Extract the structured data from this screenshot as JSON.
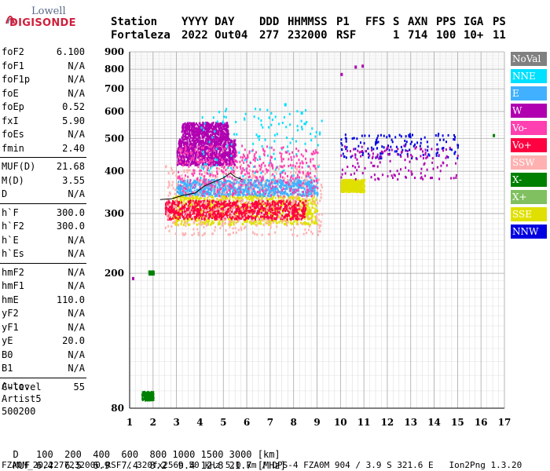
{
  "logo": {
    "line1": "Lowell",
    "line2": "DIGISONDE"
  },
  "header": {
    "labels": [
      "Station",
      "YYYY DAY",
      "DDD",
      "HHMMSS",
      "P1",
      "FFS",
      "S",
      "AXN",
      "PPS",
      "IGA",
      "PS"
    ],
    "values": [
      "Fortaleza",
      "2022 Out04",
      "277",
      "232000",
      "RSF",
      "1",
      "714",
      "100",
      "10+",
      "11"
    ]
  },
  "params_groups": [
    [
      {
        "key": "foF2",
        "value": "6.100"
      },
      {
        "key": "foF1",
        "value": "N/A"
      },
      {
        "key": "foF1p",
        "value": "N/A"
      },
      {
        "key": "foE",
        "value": "N/A"
      },
      {
        "key": "foEp",
        "value": "0.52"
      },
      {
        "key": "fxI",
        "value": "5.90"
      },
      {
        "key": "foEs",
        "value": "N/A"
      },
      {
        "key": "fmin",
        "value": "2.40"
      }
    ],
    [
      {
        "key": "MUF(D)",
        "value": "21.68"
      },
      {
        "key": "M(D)",
        "value": "3.55"
      },
      {
        "key": "D",
        "value": "N/A"
      }
    ],
    [
      {
        "key": "h`F",
        "value": "300.0"
      },
      {
        "key": "h`F2",
        "value": "300.0"
      },
      {
        "key": "h`E",
        "value": "N/A"
      },
      {
        "key": "h`Es",
        "value": "N/A"
      }
    ],
    [
      {
        "key": "hmF2",
        "value": "N/A"
      },
      {
        "key": "hmF1",
        "value": "N/A"
      },
      {
        "key": "hmE",
        "value": "110.0"
      },
      {
        "key": "yF2",
        "value": "N/A"
      },
      {
        "key": "yF1",
        "value": "N/A"
      },
      {
        "key": "yE",
        "value": "20.0"
      },
      {
        "key": "B0",
        "value": "N/A"
      },
      {
        "key": "B1",
        "value": "N/A"
      }
    ],
    [
      {
        "key": "C-level",
        "value": "55"
      }
    ]
  ],
  "auto": {
    "line1": "Auto:",
    "line2": "Artist5",
    "line3": "500200"
  },
  "legend": [
    {
      "label": "NoVal",
      "color": "#808080"
    },
    {
      "label": "NNE",
      "color": "#00e0ff"
    },
    {
      "label": "E",
      "color": "#40b0ff"
    },
    {
      "label": "W",
      "color": "#b000b0"
    },
    {
      "label": "Vo-",
      "color": "#ff40b0"
    },
    {
      "label": "Vo+",
      "color": "#ff0040"
    },
    {
      "label": "SSW",
      "color": "#ffb0b0"
    },
    {
      "label": "X-",
      "color": "#008000"
    },
    {
      "label": "X+",
      "color": "#80c060"
    },
    {
      "label": "SSE",
      "color": "#e0e000"
    },
    {
      "label": "NNW",
      "color": "#0000e0"
    }
  ],
  "footer": {
    "d_label": "D",
    "d_values": "100  200  400  600  800 1000 1500 3000 [km]",
    "muf_label": "MUF",
    "muf_values": "6.4  6.5  6.9  7.4  8.2  9.4 12.8 21.7 [MHz]",
    "file_line": "FZA0M_2022277232000.RSF / 320fx256h 50 kHz 5.0 km / DPS-4 FZA0M 904 / 3.9 S 321.6 E   Ion2Png 1.3.20"
  },
  "chart_data": {
    "type": "scatter",
    "title": "",
    "xlabel": "",
    "ylabel": "",
    "xlim": [
      1,
      17
    ],
    "ylim": [
      80,
      900
    ],
    "y_scale": "log",
    "x_ticks": [
      1,
      2,
      3,
      4,
      5,
      6,
      7,
      8,
      9,
      10,
      11,
      12,
      13,
      14,
      15,
      16,
      17
    ],
    "y_ticks": [
      80,
      200,
      300,
      400,
      500,
      600,
      700,
      800,
      900
    ],
    "grid": true,
    "legend_position": "right",
    "clusters": [
      {
        "series": "W",
        "x": [
          3.0,
          5.5
        ],
        "y": [
          420,
          500
        ],
        "density": "high"
      },
      {
        "series": "W",
        "x": [
          3.2,
          5.2
        ],
        "y": [
          500,
          560
        ],
        "density": "medium"
      },
      {
        "series": "E",
        "x": [
          3.0,
          9.0
        ],
        "y": [
          340,
          380
        ],
        "density": "high"
      },
      {
        "series": "SSE",
        "x": [
          2.8,
          9.0
        ],
        "y": [
          280,
          340
        ],
        "density": "high"
      },
      {
        "series": "Vo+",
        "x": [
          2.5,
          8.5
        ],
        "y": [
          290,
          330
        ],
        "density": "high"
      },
      {
        "series": "SSW",
        "x": [
          2.5,
          9.2
        ],
        "y": [
          260,
          420
        ],
        "density": "medium"
      },
      {
        "series": "NNE",
        "x": [
          4.0,
          9.2
        ],
        "y": [
          380,
          620
        ],
        "density": "low"
      },
      {
        "series": "Vo-",
        "x": [
          3.0,
          9.0
        ],
        "y": [
          340,
          480
        ],
        "density": "medium"
      },
      {
        "series": "NNW",
        "x": [
          10.0,
          15.0
        ],
        "y": [
          440,
          520
        ],
        "density": "low"
      },
      {
        "series": "SSE",
        "x": [
          10.0,
          11.0
        ],
        "y": [
          350,
          380
        ],
        "density": "medium"
      },
      {
        "series": "W",
        "x": [
          10.0,
          15.0
        ],
        "y": [
          380,
          480
        ],
        "density": "low"
      },
      {
        "series": "X-",
        "x": [
          1.5,
          2.0
        ],
        "y": [
          85,
          90
        ],
        "density": "low"
      },
      {
        "series": "X-",
        "x": [
          1.8,
          2.0
        ],
        "y": [
          200,
          204
        ],
        "density": "low"
      }
    ],
    "points": [
      {
        "series": "W",
        "x": 10.6,
        "y": 820
      },
      {
        "series": "W",
        "x": 10.9,
        "y": 825
      },
      {
        "series": "W",
        "x": 10.0,
        "y": 780
      },
      {
        "series": "X-",
        "x": 16.5,
        "y": 515
      },
      {
        "series": "W",
        "x": 1.1,
        "y": 195
      },
      {
        "series": "NNE",
        "x": 7.6,
        "y": 635
      },
      {
        "series": "NNE",
        "x": 8.3,
        "y": 600
      }
    ],
    "trace": [
      [
        2.3,
        330
      ],
      [
        2.8,
        332
      ],
      [
        3.3,
        340
      ],
      [
        3.8,
        345
      ],
      [
        4.2,
        362
      ],
      [
        4.6,
        372
      ],
      [
        5.0,
        382
      ],
      [
        5.3,
        395
      ],
      [
        5.5,
        385
      ],
      [
        5.8,
        378
      ]
    ]
  }
}
